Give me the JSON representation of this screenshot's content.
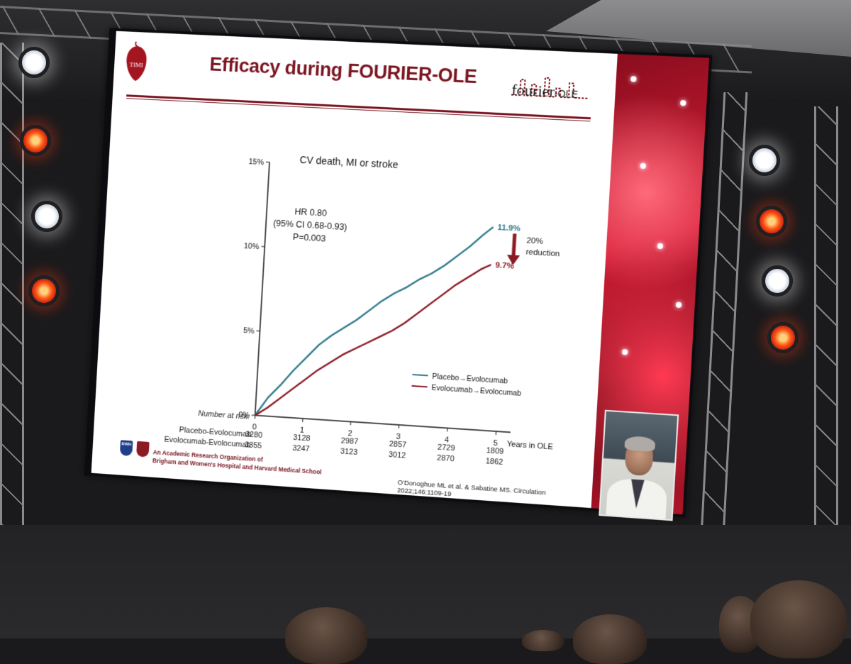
{
  "slide": {
    "title": "Efficacy during FOURIER-OLE",
    "logo_timi": "TIMI",
    "logo_fourier": "fourier",
    "logo_fourier_suffix": "OLE",
    "footer_line1": "An Academic Research Organization of",
    "footer_line2": "Brigham and Women's Hospital and Harvard Medical School",
    "footer_logo_bwh": "BWH",
    "citation": "O'Donoghue ML et al. & Sabatine MS. Circulation 2022;146:1109-19"
  },
  "chart_data": {
    "type": "line",
    "title": "CV death, MI or stroke",
    "xlabel": "Years in OLE",
    "ylabel": "",
    "xlim": [
      0,
      5
    ],
    "ylim": [
      0,
      15
    ],
    "x_ticks": [
      "0",
      "1",
      "2",
      "3",
      "4",
      "5"
    ],
    "y_ticks": [
      "0%",
      "5%",
      "10%",
      "15%"
    ],
    "series": [
      {
        "name": "Placebo→Evolocumab",
        "color": "#2f7a8c",
        "x": [
          0,
          0.25,
          0.5,
          0.75,
          1.0,
          1.25,
          1.5,
          1.75,
          2.0,
          2.25,
          2.5,
          2.75,
          3.0,
          3.25,
          3.5,
          3.75,
          4.0,
          4.25,
          4.5,
          4.7
        ],
        "y": [
          0,
          1.1,
          1.9,
          2.8,
          3.6,
          4.4,
          5.0,
          5.5,
          6.0,
          6.6,
          7.2,
          7.7,
          8.1,
          8.6,
          9.0,
          9.5,
          10.1,
          10.7,
          11.4,
          11.9
        ]
      },
      {
        "name": "Evolocumab→Evolocumab",
        "color": "#8b1a22",
        "x": [
          0,
          0.25,
          0.5,
          0.75,
          1.0,
          1.25,
          1.5,
          1.75,
          2.0,
          2.25,
          2.5,
          2.75,
          3.0,
          3.25,
          3.5,
          3.75,
          4.0,
          4.25,
          4.5,
          4.7
        ],
        "y": [
          0,
          0.5,
          1.1,
          1.7,
          2.3,
          2.9,
          3.4,
          3.9,
          4.3,
          4.7,
          5.1,
          5.5,
          6.0,
          6.6,
          7.2,
          7.8,
          8.4,
          8.9,
          9.4,
          9.7
        ]
      }
    ],
    "end_labels": [
      "11.9%",
      "9.7%"
    ],
    "annotation_stats": [
      "HR 0.80",
      "(95% CI 0.68-0.93)",
      "P=0.003"
    ],
    "annotation_reduction": [
      "20%",
      "reduction"
    ],
    "legend": [
      {
        "label": "Placebo→Evolocumab",
        "color": "#2f7a8c"
      },
      {
        "label": "Evolocumab→Evolocumab",
        "color": "#8b1a22"
      }
    ],
    "legend_position": "bottom-right",
    "number_at_risk": {
      "header": "Number at risk:",
      "rows": [
        {
          "label": "Placebo-Evolocumab",
          "values": [
            "3280",
            "3128",
            "2987",
            "2857",
            "2729",
            "1809"
          ]
        },
        {
          "label": "Evolocumab-Evolocumab",
          "values": [
            "3355",
            "3247",
            "3123",
            "3012",
            "2870",
            "1862"
          ]
        }
      ]
    }
  }
}
